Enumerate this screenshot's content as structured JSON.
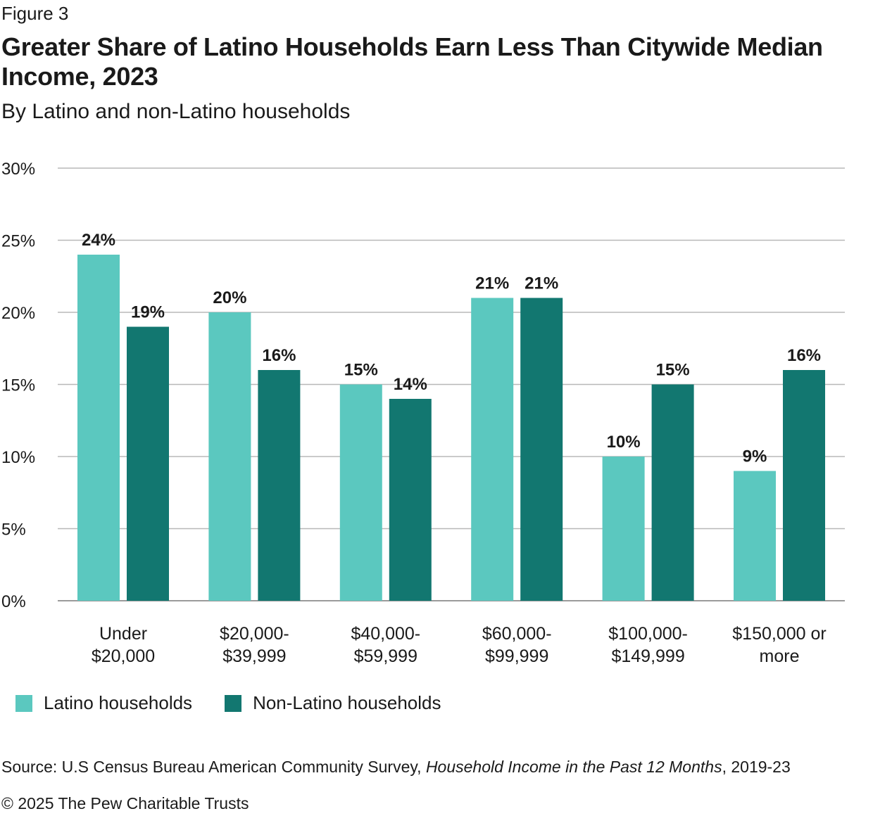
{
  "figure_label": "Figure 3",
  "colors": {
    "latino": "#5bc8bf",
    "non_latino": "#127770",
    "grid": "#b8b8b8",
    "axis": "#9a9a9a",
    "text": "#1a1a1a"
  },
  "chart_data": {
    "type": "bar",
    "title": "Greater Share of Latino Households Earn Less Than Citywide Median Income, 2023",
    "subtitle": "By Latino and non-Latino households",
    "categories": [
      [
        "Under",
        "$20,000"
      ],
      [
        "$20,000-",
        "$39,999"
      ],
      [
        "$40,000-",
        "$59,999"
      ],
      [
        "$60,000-",
        "$99,999"
      ],
      [
        "$100,000-",
        "$149,999"
      ],
      [
        "$150,000 or",
        "more"
      ]
    ],
    "series": [
      {
        "name": "Latino households",
        "values": [
          24,
          20,
          15,
          21,
          10,
          9
        ]
      },
      {
        "name": "Non-Latino households",
        "values": [
          19,
          16,
          14,
          21,
          15,
          16
        ]
      }
    ],
    "data_labels": [
      [
        "24%",
        "20%",
        "15%",
        "21%",
        "10%",
        "9%"
      ],
      [
        "19%",
        "16%",
        "14%",
        "21%",
        "15%",
        "16%"
      ]
    ],
    "yticks": [
      "0%",
      "5%",
      "10%",
      "15%",
      "20%",
      "25%",
      "30%"
    ],
    "ylim": [
      0,
      30
    ],
    "grid": true,
    "legend_position": "bottom-left"
  },
  "footer": {
    "source_prefix": "Source: U.S Census Bureau American Community Survey, ",
    "source_title": "Household Income in the Past 12 Months",
    "source_suffix": ", 2019-23",
    "copyright": "© 2025 The Pew Charitable Trusts"
  }
}
